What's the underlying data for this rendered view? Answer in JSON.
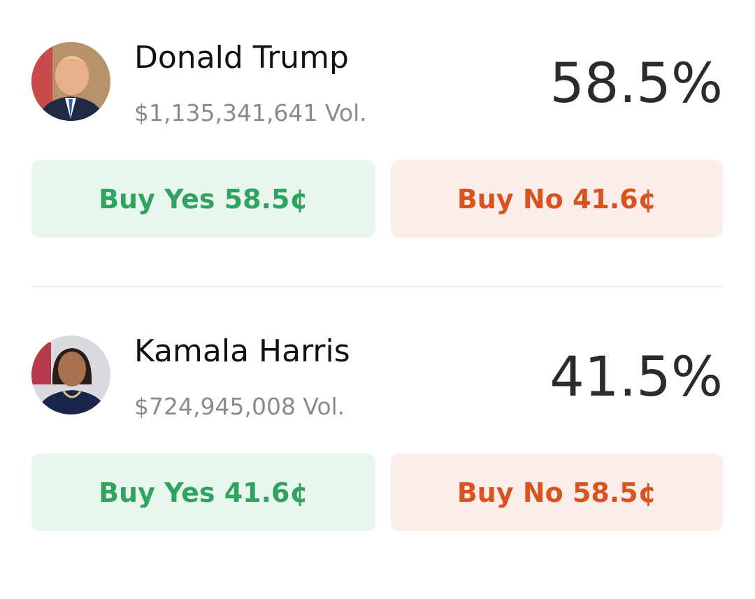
{
  "markets": [
    {
      "name": "Donald Trump",
      "volume": "$1,135,341,641 Vol.",
      "chance": "58.5%",
      "buy_yes": "Buy Yes 58.5¢",
      "buy_no": "Buy No 41.6¢"
    },
    {
      "name": "Kamala Harris",
      "volume": "$724,945,008 Vol.",
      "chance": "41.5%",
      "buy_yes": "Buy Yes 41.6¢",
      "buy_no": "Buy No 58.5¢"
    }
  ]
}
